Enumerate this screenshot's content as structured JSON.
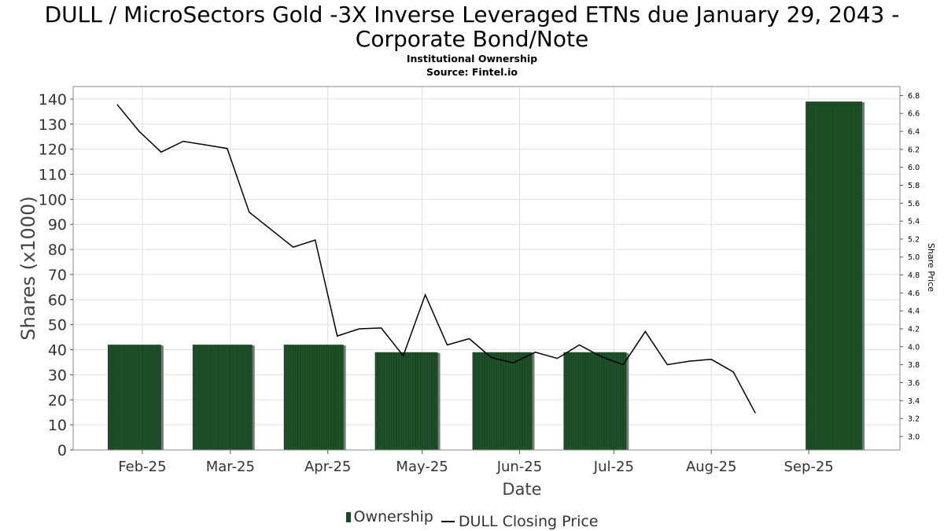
{
  "header": {
    "title_line1": "DULL / MicroSectors Gold -3X Inverse Leveraged ETNs due January 29, 2043 -",
    "title_line2": "Corporate Bond/Note",
    "subtitle1": "Institutional Ownership",
    "subtitle2": "Source: Fintel.io"
  },
  "legend": {
    "ownership": "Ownership",
    "price": "DULL Closing Price"
  },
  "colors": {
    "bar": "#1a4a24",
    "bar_shadow": "#7a7a7a",
    "price_line": "#000000",
    "grid": "#e0e0e0"
  },
  "chart_data": {
    "type": "bar",
    "xlabel": "Date",
    "ylabel": "Shares (x1000)",
    "y2label": "Share Price",
    "ylim": [
      0,
      145
    ],
    "y2lim": [
      2.85,
      6.9
    ],
    "yticks": [
      0,
      10,
      20,
      30,
      40,
      50,
      60,
      70,
      80,
      90,
      100,
      110,
      120,
      130,
      140
    ],
    "y2ticks": [
      "3.0",
      "3.2",
      "3.4",
      "3.6",
      "3.8",
      "4.0",
      "4.2",
      "4.4",
      "4.6",
      "4.8",
      "5.0",
      "5.2",
      "5.4",
      "5.6",
      "5.8",
      "6.0",
      "6.2",
      "6.4",
      "6.6",
      "6.8"
    ],
    "xlim": [
      "2025-01-10",
      "2025-09-30"
    ],
    "xticks": [
      {
        "label": "Feb-25",
        "date": "2025-02-01"
      },
      {
        "label": "Mar-25",
        "date": "2025-03-01"
      },
      {
        "label": "Apr-25",
        "date": "2025-04-01"
      },
      {
        "label": "May-25",
        "date": "2025-05-01"
      },
      {
        "label": "Jun-25",
        "date": "2025-06-01"
      },
      {
        "label": "Jul-25",
        "date": "2025-07-01"
      },
      {
        "label": "Aug-25",
        "date": "2025-08-01"
      },
      {
        "label": "Sep-25",
        "date": "2025-09-01"
      }
    ],
    "series": [
      {
        "name": "Ownership",
        "type": "bar",
        "bars": [
          {
            "start": "2025-01-21",
            "end": "2025-02-07",
            "value": 42
          },
          {
            "start": "2025-02-17",
            "end": "2025-03-08",
            "value": 42
          },
          {
            "start": "2025-03-18",
            "end": "2025-04-06",
            "value": 42
          },
          {
            "start": "2025-04-16",
            "end": "2025-05-06",
            "value": 39
          },
          {
            "start": "2025-05-17",
            "end": "2025-06-05",
            "value": 39
          },
          {
            "start": "2025-06-15",
            "end": "2025-07-05",
            "value": 39
          },
          {
            "start": "2025-08-31",
            "end": "2025-09-18",
            "value": 139
          }
        ]
      },
      {
        "name": "DULL Closing Price",
        "type": "line",
        "points": [
          [
            "2025-01-24",
            6.7
          ],
          [
            "2025-01-31",
            6.4
          ],
          [
            "2025-02-07",
            6.17
          ],
          [
            "2025-02-14",
            6.29
          ],
          [
            "2025-02-28",
            6.21
          ],
          [
            "2025-03-07",
            5.5
          ],
          [
            "2025-03-21",
            5.11
          ],
          [
            "2025-03-28",
            5.19
          ],
          [
            "2025-04-04",
            4.12
          ],
          [
            "2025-04-11",
            4.2
          ],
          [
            "2025-04-18",
            4.21
          ],
          [
            "2025-04-25",
            3.9
          ],
          [
            "2025-05-02",
            4.58
          ],
          [
            "2025-05-09",
            4.02
          ],
          [
            "2025-05-16",
            4.09
          ],
          [
            "2025-05-23",
            3.88
          ],
          [
            "2025-05-30",
            3.82
          ],
          [
            "2025-06-06",
            3.94
          ],
          [
            "2025-06-13",
            3.87
          ],
          [
            "2025-06-20",
            4.02
          ],
          [
            "2025-06-27",
            3.89
          ],
          [
            "2025-07-04",
            3.8
          ],
          [
            "2025-07-11",
            4.17
          ],
          [
            "2025-07-18",
            3.8
          ],
          [
            "2025-07-25",
            3.84
          ],
          [
            "2025-08-01",
            3.86
          ],
          [
            "2025-08-08",
            3.72
          ],
          [
            "2025-08-15",
            3.26
          ]
        ]
      }
    ]
  }
}
